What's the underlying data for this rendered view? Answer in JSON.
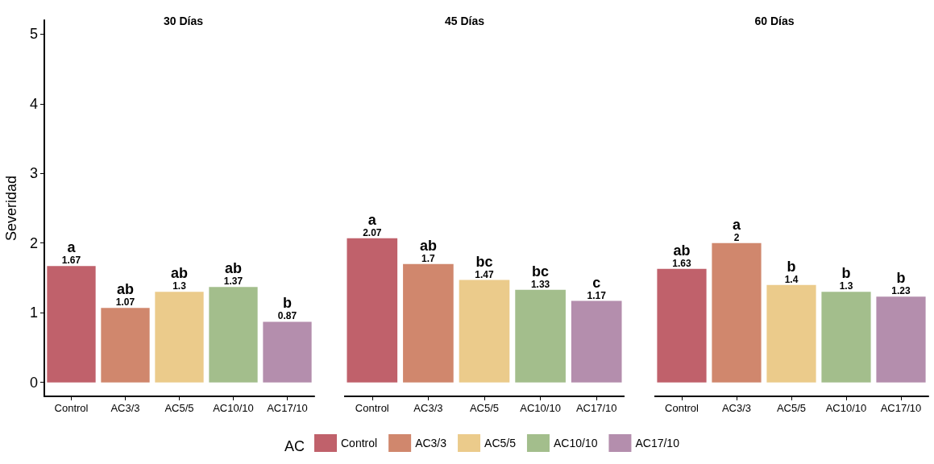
{
  "chart_data": [
    {
      "type": "bar",
      "title": "30 Días",
      "ylabel": "Severidad",
      "categories": [
        "Control",
        "AC3/3",
        "AC5/5",
        "AC10/10",
        "AC17/10"
      ],
      "series": [
        {
          "name": "Control",
          "color": "#c0616b",
          "values": [
            1.67,
            null,
            null,
            null,
            null
          ]
        },
        {
          "name": "AC3/3",
          "color": "#d0876d",
          "values": [
            null,
            1.07,
            null,
            null,
            null
          ]
        },
        {
          "name": "AC5/5",
          "color": "#ebcb8b",
          "values": [
            null,
            null,
            1.3,
            null,
            null
          ]
        },
        {
          "name": "AC10/10",
          "color": "#a3be8c",
          "values": [
            null,
            null,
            null,
            1.37,
            null
          ]
        },
        {
          "name": "AC17/10",
          "color": "#b48ead",
          "values": [
            null,
            null,
            null,
            null,
            0.87
          ]
        }
      ],
      "data_labels": true,
      "ylim": [
        -0.2,
        5.2
      ],
      "yticks": [
        0,
        1,
        2,
        3,
        4,
        5
      ],
      "legend": "bottom",
      "legend_title": "AC",
      "annotations": [
        {
          "text": "a",
          "x": "Control",
          "y": 1.67
        },
        {
          "text": "ab",
          "x": "AC3/3",
          "y": 1.07
        },
        {
          "text": "ab",
          "x": "AC5/5",
          "y": 1.3
        },
        {
          "text": "ab",
          "x": "AC10/10",
          "y": 1.37
        },
        {
          "text": "b",
          "x": "AC17/10",
          "y": 0.87
        }
      ]
    },
    {
      "type": "bar",
      "title": "45 Días",
      "categories": [
        "Control",
        "AC3/3",
        "AC5/5",
        "AC10/10",
        "AC17/10"
      ],
      "series": [
        {
          "color": "#c0616b",
          "values": [
            2.07,
            null,
            null,
            null,
            null
          ]
        },
        {
          "color": "#d0876d",
          "values": [
            null,
            1.7,
            null,
            null,
            null
          ]
        },
        {
          "color": "#ebcb8b",
          "values": [
            null,
            null,
            1.47,
            null,
            null
          ]
        },
        {
          "color": "#a3be8c",
          "values": [
            null,
            null,
            null,
            1.33,
            null
          ]
        },
        {
          "color": "#b48ead",
          "values": [
            null,
            null,
            null,
            null,
            1.17
          ]
        }
      ],
      "data_labels": true,
      "ylim": [
        -0.2,
        5
      ],
      "yticks": [
        0,
        1,
        2,
        3,
        4,
        5
      ],
      "tick_labels": "x",
      "annotations": [
        {
          "text": "a",
          "x": "Control",
          "y": 2.07
        },
        {
          "text": "ab",
          "x": "AC3/3",
          "y": 1.7
        },
        {
          "text": "bc",
          "x": "AC5/5",
          "y": 1.47
        },
        {
          "text": "bc",
          "x": "AC10/10",
          "y": 1.33
        },
        {
          "text": "c",
          "x": "AC17/10",
          "y": 1.17
        }
      ]
    },
    {
      "type": "bar",
      "title": "60 Días",
      "categories": [
        "Control",
        "AC3/3",
        "AC5/5",
        "AC10/10",
        "AC17/10"
      ],
      "series": [
        {
          "color": "#c0616b",
          "values": [
            1.63,
            null,
            null,
            null,
            null
          ]
        },
        {
          "color": "#d0876d",
          "values": [
            null,
            2,
            null,
            null,
            null
          ]
        },
        {
          "color": "#ebcb8b",
          "values": [
            null,
            null,
            1.4,
            null,
            null
          ]
        },
        {
          "color": "#a3be8c",
          "values": [
            null,
            null,
            null,
            1.3,
            null
          ]
        },
        {
          "color": "#b48ead",
          "values": [
            null,
            null,
            null,
            null,
            1.23
          ]
        }
      ],
      "data_labels": true,
      "ylim": [
        -0.2,
        5
      ],
      "yticks": [
        0,
        1,
        2,
        3,
        4,
        5
      ],
      "tick_labels": "x",
      "annotations": [
        {
          "text": "ab",
          "x": "Control",
          "y": 1.63
        },
        {
          "text": "a",
          "x": "AC3/3",
          "y": 2
        },
        {
          "text": "b",
          "x": "AC5/5",
          "y": 1.4
        },
        {
          "text": "b",
          "x": "AC10/10",
          "y": 1.3
        },
        {
          "text": "b",
          "x": "AC17/10",
          "y": 1.23
        }
      ]
    }
  ]
}
